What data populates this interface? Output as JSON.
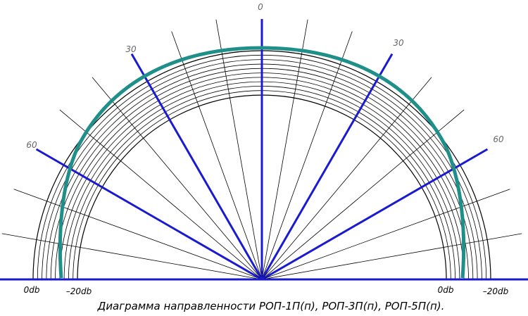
{
  "angle_labels": {
    "top": "0",
    "left_30": "30",
    "right_30": "30",
    "left_60": "60",
    "right_60": "60"
  },
  "level_labels": {
    "left_0db": "0db",
    "left_20db": "–20db",
    "right_0db": "0db",
    "right_20db": "–20db"
  },
  "caption": "Диаграмма направленности РОП-1П(п), РОП-3П(п), РОП-5П(п)."
}
